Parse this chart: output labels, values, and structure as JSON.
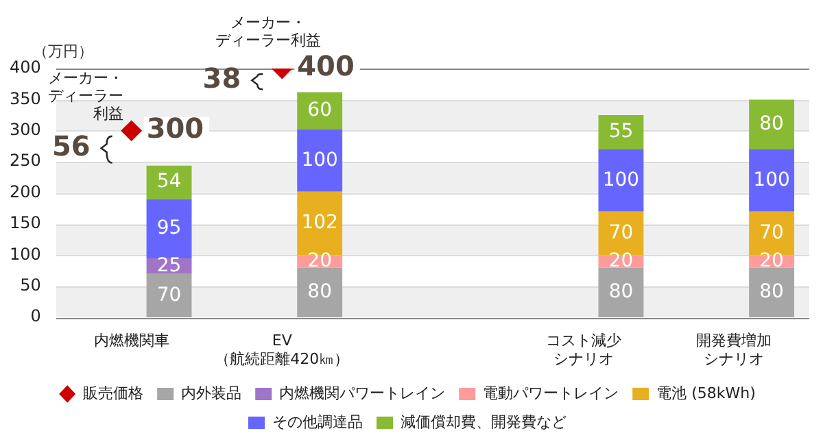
{
  "chart_data": {
    "type": "bar",
    "stacked": true,
    "ylabel": "（万円）",
    "categories": [
      "内燃機関車",
      "EV（航続距離420㎞）",
      null,
      "コスト減少シナリオ",
      "開発費増加シナリオ"
    ],
    "series": [
      {
        "name": "販売価格",
        "type": "scatter",
        "color": "#cc0000",
        "marker": "diamond",
        "values": [
          300,
          400,
          null,
          null,
          null
        ]
      },
      {
        "name": "内外装品",
        "color": "#a6a6a6",
        "values": [
          70,
          80,
          null,
          80,
          80
        ]
      },
      {
        "name": "内燃機関パワートレイン",
        "color": "#a074c8",
        "values": [
          25,
          null,
          null,
          null,
          null
        ]
      },
      {
        "name": "電動パワートレイン",
        "color": "#ff9b9b",
        "values": [
          null,
          20,
          null,
          20,
          20
        ]
      },
      {
        "name": "電池 (58kWh)",
        "color": "#e8b020",
        "values": [
          null,
          102,
          null,
          70,
          70
        ]
      },
      {
        "name": "その他調達品",
        "color": "#6666ff",
        "values": [
          95,
          100,
          null,
          100,
          100
        ]
      },
      {
        "name": "減価償却費、開発費など",
        "color": "#88bb33",
        "values": [
          54,
          60,
          null,
          55,
          80
        ]
      }
    ],
    "ylim": [
      0,
      400
    ],
    "yticks": [
      0,
      50,
      100,
      150,
      200,
      250,
      300,
      350,
      400
    ],
    "grid": "y",
    "legend": "bottom",
    "data_labels": true,
    "annotations": [
      "メーカー・ディーラー利益",
      "56",
      "メーカー・ディーラー利益",
      "38"
    ]
  }
}
